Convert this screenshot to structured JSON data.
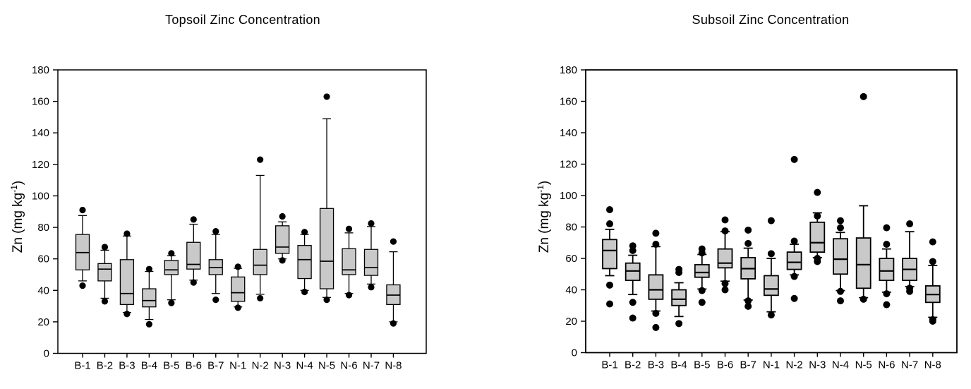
{
  "figure": {
    "background": "#ffffff",
    "text_color": "#000000"
  },
  "styles": {
    "box_fill": "#c9c9c9",
    "line_color": "#000000",
    "outlier_color": "#000000"
  },
  "chart_data": [
    {
      "type": "box",
      "title": "Topsoil Zinc Concentration",
      "ylabel": "Zn (mg kg-1)",
      "ylabel_parts": {
        "pre": "Zn (mg kg",
        "sup": "-1",
        "post": ")"
      },
      "xlabel": "",
      "ylim": [
        0,
        180
      ],
      "ytick_step": 20,
      "grid": false,
      "legend": "none",
      "categories": [
        "B-1",
        "B-2",
        "B-3",
        "B-4",
        "B-5",
        "B-6",
        "B-7",
        "N-1",
        "N-2",
        "N-3",
        "N-4",
        "N-5",
        "N-6",
        "N-7",
        "N-8"
      ],
      "boxes": [
        {
          "label": "B-1",
          "whisker_low": 46,
          "q1": 53,
          "median": 64,
          "q3": 75.5,
          "whisker_high": 87.5,
          "outliers": [
            91,
            43
          ]
        },
        {
          "label": "B-2",
          "whisker_low": 35,
          "q1": 46,
          "median": 53.5,
          "q3": 57,
          "whisker_high": 65.5,
          "outliers": [
            67.5,
            33
          ]
        },
        {
          "label": "B-3",
          "whisker_low": 26,
          "q1": 31,
          "median": 38,
          "q3": 59.5,
          "whisker_high": 74.5,
          "outliers": [
            76,
            25
          ]
        },
        {
          "label": "B-4",
          "whisker_low": 21.5,
          "q1": 29.5,
          "median": 33.5,
          "q3": 41,
          "whisker_high": 52,
          "outliers": [
            53.5,
            18.5
          ]
        },
        {
          "label": "B-5",
          "whisker_low": 34,
          "q1": 50,
          "median": 53,
          "q3": 59,
          "whisker_high": 62,
          "outliers": [
            63.5,
            32
          ]
        },
        {
          "label": "B-6",
          "whisker_low": 46.5,
          "q1": 53.5,
          "median": 56.5,
          "q3": 70.5,
          "whisker_high": 82,
          "outliers": [
            85,
            45
          ]
        },
        {
          "label": "B-7",
          "whisker_low": 38,
          "q1": 50,
          "median": 54.5,
          "q3": 59.5,
          "whisker_high": 75.5,
          "outliers": [
            77.5,
            34
          ]
        },
        {
          "label": "N-1",
          "whisker_low": 29.5,
          "q1": 33,
          "median": 38.5,
          "q3": 48.5,
          "whisker_high": 54,
          "outliers": [
            55,
            29
          ]
        },
        {
          "label": "N-2",
          "whisker_low": 37.5,
          "q1": 50,
          "median": 56,
          "q3": 66,
          "whisker_high": 113,
          "outliers": [
            123,
            35
          ]
        },
        {
          "label": "N-3",
          "whisker_low": 60,
          "q1": 63.5,
          "median": 67.5,
          "q3": 81,
          "whisker_high": 83.5,
          "outliers": [
            87,
            59
          ]
        },
        {
          "label": "N-4",
          "whisker_low": 40,
          "q1": 47.5,
          "median": 59.5,
          "q3": 68.5,
          "whisker_high": 75.5,
          "outliers": [
            77,
            39
          ]
        },
        {
          "label": "N-5",
          "whisker_low": 35.5,
          "q1": 41,
          "median": 58.5,
          "q3": 92,
          "whisker_high": 149,
          "outliers": [
            163,
            34
          ]
        },
        {
          "label": "N-6",
          "whisker_low": 38,
          "q1": 50,
          "median": 53,
          "q3": 66.5,
          "whisker_high": 76.5,
          "outliers": [
            79,
            37
          ]
        },
        {
          "label": "N-7",
          "whisker_low": 44,
          "q1": 49.5,
          "median": 54.5,
          "q3": 66,
          "whisker_high": 80.5,
          "outliers": [
            82.5,
            42
          ]
        },
        {
          "label": "N-8",
          "whisker_low": 20,
          "q1": 31,
          "median": 37,
          "q3": 43.5,
          "whisker_high": 64.5,
          "outliers": [
            71,
            19
          ]
        }
      ]
    },
    {
      "type": "box",
      "title": "Subsoil Zinc Concentration",
      "ylabel": "Zn (mg kg-1)",
      "ylabel_parts": {
        "pre": "Zn (mg kg",
        "sup": "-1",
        "post": ")"
      },
      "xlabel": "",
      "ylim": [
        0,
        180
      ],
      "ytick_step": 20,
      "grid": false,
      "legend": "none",
      "categories": [
        "B-1",
        "B-2",
        "B-3",
        "B-4",
        "B-5",
        "B-6",
        "B-7",
        "N-1",
        "N-2",
        "N-3",
        "N-4",
        "N-5",
        "N-6",
        "N-7",
        "N-8"
      ],
      "boxes": [
        {
          "label": "B-1",
          "whisker_low": 49,
          "q1": 53.5,
          "median": 65,
          "q3": 72,
          "whisker_high": 78.5,
          "outliers": [
            91,
            82,
            43,
            31
          ]
        },
        {
          "label": "B-2",
          "whisker_low": 37,
          "q1": 46,
          "median": 52,
          "q3": 57,
          "whisker_high": 62,
          "outliers": [
            68,
            65,
            32,
            22
          ]
        },
        {
          "label": "B-3",
          "whisker_low": 26.5,
          "q1": 34,
          "median": 40,
          "q3": 49.5,
          "whisker_high": 67.5,
          "outliers": [
            76,
            69,
            25,
            16
          ]
        },
        {
          "label": "B-4",
          "whisker_low": 23,
          "q1": 30,
          "median": 34,
          "q3": 40,
          "whisker_high": 44.5,
          "outliers": [
            53,
            51,
            18.5
          ]
        },
        {
          "label": "B-5",
          "whisker_low": 40.5,
          "q1": 48,
          "median": 51,
          "q3": 56,
          "whisker_high": 62.5,
          "outliers": [
            66,
            63.5,
            39.5,
            32
          ]
        },
        {
          "label": "B-6",
          "whisker_low": 45.5,
          "q1": 54,
          "median": 57,
          "q3": 66,
          "whisker_high": 77,
          "outliers": [
            84.5,
            77.5,
            44,
            40
          ]
        },
        {
          "label": "B-7",
          "whisker_low": 33.5,
          "q1": 47,
          "median": 53.5,
          "q3": 60.5,
          "whisker_high": 66.5,
          "outliers": [
            78,
            69.5,
            33,
            29.5
          ]
        },
        {
          "label": "N-1",
          "whisker_low": 26,
          "q1": 36.5,
          "median": 40.5,
          "q3": 49,
          "whisker_high": 60,
          "outliers": [
            84,
            63,
            24
          ]
        },
        {
          "label": "N-2",
          "whisker_low": 49.5,
          "q1": 53,
          "median": 57.5,
          "q3": 64,
          "whisker_high": 69,
          "outliers": [
            123,
            71,
            48.5,
            34.5
          ]
        },
        {
          "label": "N-3",
          "whisker_low": 60.5,
          "q1": 64,
          "median": 70,
          "q3": 83,
          "whisker_high": 89,
          "outliers": [
            102,
            87,
            60,
            58
          ]
        },
        {
          "label": "N-4",
          "whisker_low": 39.5,
          "q1": 50,
          "median": 59.5,
          "q3": 72.5,
          "whisker_high": 76.5,
          "outliers": [
            84,
            79.5,
            39,
            33
          ]
        },
        {
          "label": "N-5",
          "whisker_low": 35,
          "q1": 41,
          "median": 56,
          "q3": 73,
          "whisker_high": 93.5,
          "outliers": [
            163,
            34
          ]
        },
        {
          "label": "N-6",
          "whisker_low": 38.5,
          "q1": 46,
          "median": 52,
          "q3": 60,
          "whisker_high": 66,
          "outliers": [
            79.5,
            69,
            37.5,
            30.5
          ]
        },
        {
          "label": "N-7",
          "whisker_low": 42,
          "q1": 46,
          "median": 53,
          "q3": 60,
          "whisker_high": 77,
          "outliers": [
            82,
            41,
            39
          ]
        },
        {
          "label": "N-8",
          "whisker_low": 22.5,
          "q1": 32,
          "median": 37,
          "q3": 42.5,
          "whisker_high": 55.5,
          "outliers": [
            70.5,
            58,
            21,
            20
          ]
        }
      ]
    }
  ]
}
